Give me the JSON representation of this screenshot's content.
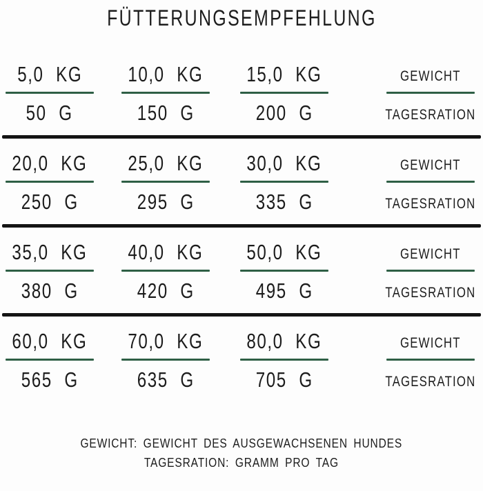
{
  "title": "FÜTTERUNGSEMPFEHLUNG",
  "colors": {
    "accent_green": "#2e5f45",
    "divider_black": "#141414",
    "text": "#1c1c1c"
  },
  "labels": {
    "weight": "GEWICHT",
    "daily_ration": "TAGESRATION"
  },
  "table": {
    "groups": [
      {
        "cells": [
          {
            "weight": "5,0 KG",
            "ration": "50 G"
          },
          {
            "weight": "10,0 KG",
            "ration": "150 G"
          },
          {
            "weight": "15,0 KG",
            "ration": "200 G"
          }
        ]
      },
      {
        "cells": [
          {
            "weight": "20,0 KG",
            "ration": "250 G"
          },
          {
            "weight": "25,0 KG",
            "ration": "295 G"
          },
          {
            "weight": "30,0 KG",
            "ration": "335 G"
          }
        ]
      },
      {
        "cells": [
          {
            "weight": "35,0 KG",
            "ration": "380 G"
          },
          {
            "weight": "40,0 KG",
            "ration": "420 G"
          },
          {
            "weight": "50,0 KG",
            "ration": "495 G"
          }
        ]
      },
      {
        "cells": [
          {
            "weight": "60,0 KG",
            "ration": "565 G"
          },
          {
            "weight": "70,0 KG",
            "ration": "635 G"
          },
          {
            "weight": "80,0 KG",
            "ration": "705 G"
          }
        ]
      }
    ]
  },
  "footer": {
    "line1": "GEWICHT: GEWICHT DES AUSGEWACHSENEN HUNDES",
    "line2": "TAGESRATION: GRAMM PRO TAG"
  }
}
